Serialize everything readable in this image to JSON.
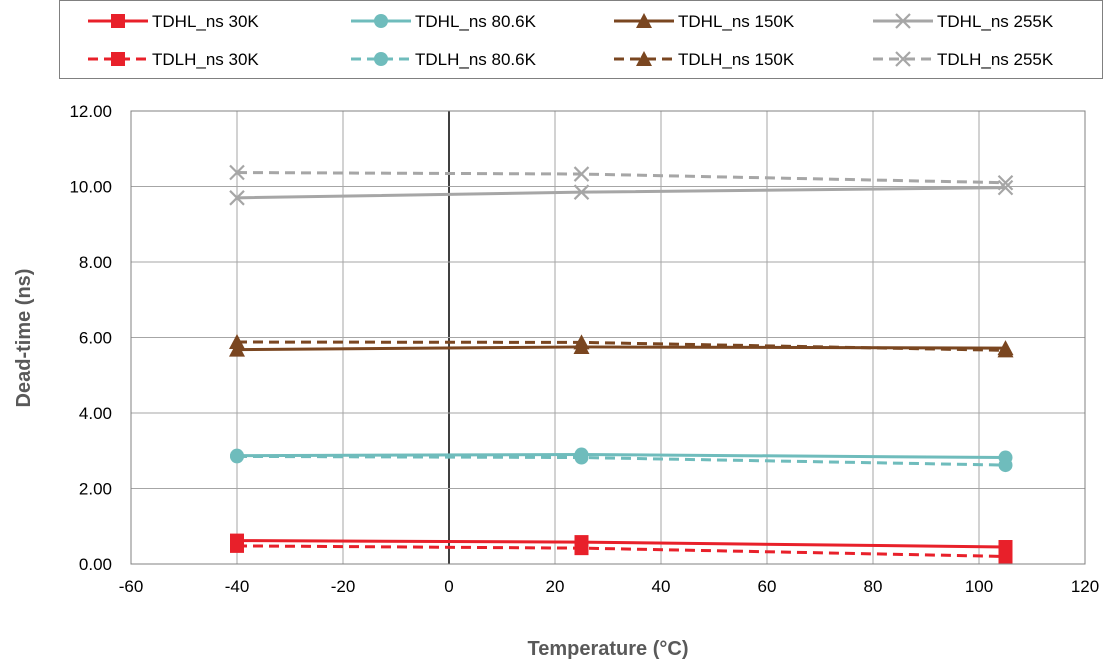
{
  "chart_data": {
    "type": "line",
    "xlabel": "Temperature (°C)",
    "ylabel": "Dead-time (ns)",
    "xlim": [
      -60,
      120
    ],
    "ylim": [
      0,
      12
    ],
    "x_ticks": [
      -60,
      -40,
      -20,
      0,
      20,
      40,
      60,
      80,
      100,
      120
    ],
    "y_ticks": [
      0,
      2,
      4,
      6,
      8,
      10,
      12
    ],
    "y_tick_labels": [
      "0.00",
      "2.00",
      "4.00",
      "6.00",
      "8.00",
      "10.00",
      "12.00"
    ],
    "grid": true,
    "legend_position": "top",
    "x": [
      -40,
      25,
      105
    ],
    "series": [
      {
        "name": "TDHL_ns 30K",
        "values": [
          0.62,
          0.58,
          0.45
        ],
        "color": "#e8202a",
        "marker": "square",
        "dash": false
      },
      {
        "name": "TDHL_ns 80.6K",
        "values": [
          2.87,
          2.9,
          2.82
        ],
        "color": "#6fbcbc",
        "marker": "circle",
        "dash": false
      },
      {
        "name": "TDHL_ns 150K",
        "values": [
          5.68,
          5.75,
          5.72
        ],
        "color": "#7a4620",
        "marker": "triangle",
        "dash": false
      },
      {
        "name": "TDHL_ns 255K",
        "values": [
          9.7,
          9.85,
          9.97
        ],
        "color": "#a6a6a6",
        "marker": "x",
        "dash": false
      },
      {
        "name": "TDLH_ns 30K",
        "values": [
          0.48,
          0.42,
          0.2
        ],
        "color": "#e8202a",
        "marker": "square",
        "dash": true
      },
      {
        "name": "TDLH_ns 80.6K",
        "values": [
          2.85,
          2.82,
          2.62
        ],
        "color": "#6fbcbc",
        "marker": "circle",
        "dash": true
      },
      {
        "name": "TDLH_ns 150K",
        "values": [
          5.88,
          5.87,
          5.66
        ],
        "color": "#7a4620",
        "marker": "triangle",
        "dash": true
      },
      {
        "name": "TDLH_ns 255K",
        "values": [
          10.37,
          10.33,
          10.1
        ],
        "color": "#a6a6a6",
        "marker": "x",
        "dash": true
      }
    ]
  }
}
